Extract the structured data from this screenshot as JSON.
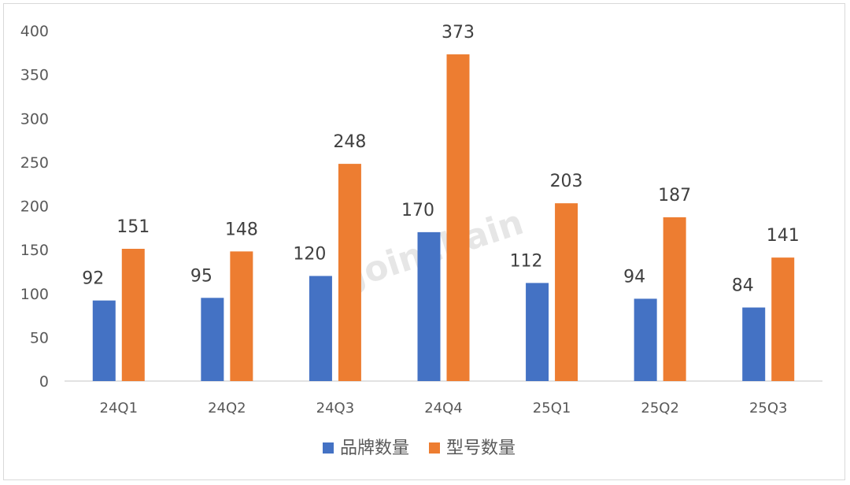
{
  "chart_data": {
    "type": "bar",
    "categories": [
      "24Q1",
      "24Q2",
      "24Q3",
      "24Q4",
      "25Q1",
      "25Q2",
      "25Q3"
    ],
    "series": [
      {
        "name": "品牌数量",
        "color": "#4472c4",
        "values": [
          92,
          95,
          120,
          170,
          112,
          94,
          84
        ]
      },
      {
        "name": "型号数量",
        "color": "#ed7d31",
        "values": [
          151,
          148,
          248,
          373,
          203,
          187,
          141
        ]
      }
    ],
    "title": "",
    "xlabel": "",
    "ylabel": "",
    "ylim": [
      0,
      400
    ],
    "yticks": [
      0,
      50,
      100,
      150,
      200,
      250,
      300,
      350,
      400
    ],
    "grid": false,
    "legend_position": "bottom-center",
    "data_labels": true,
    "watermark": "Joinchain"
  }
}
